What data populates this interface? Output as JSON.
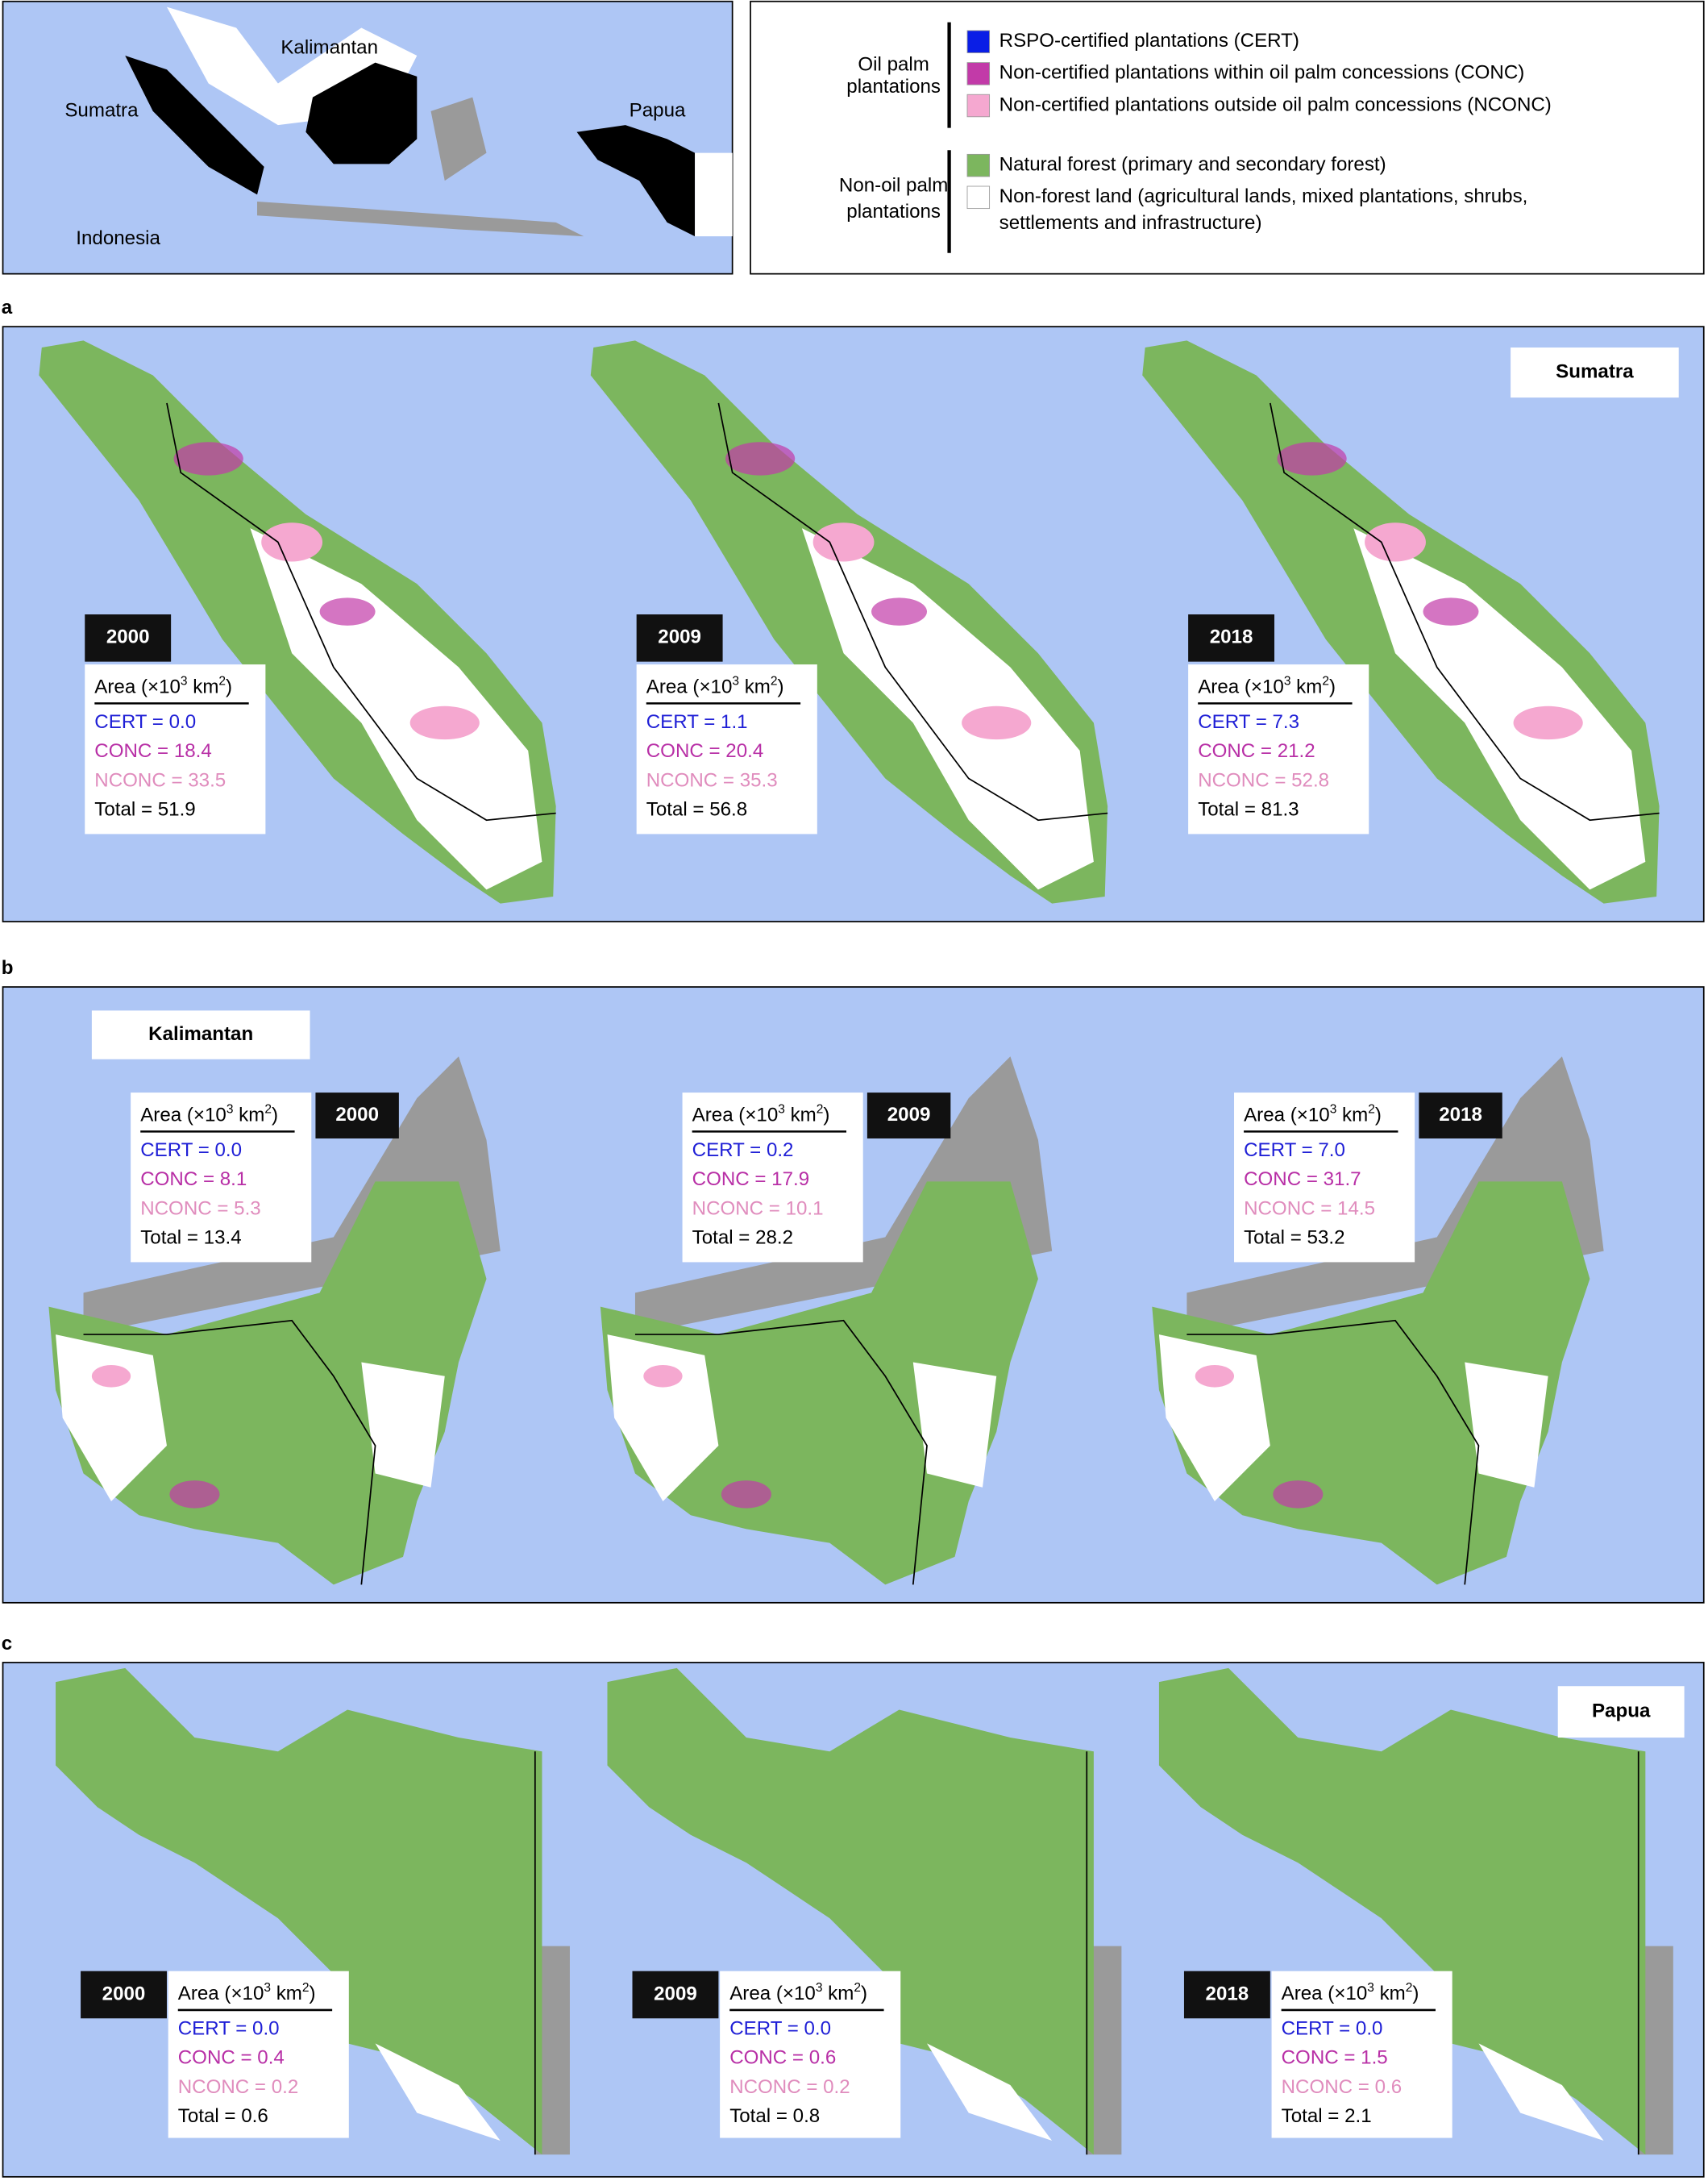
{
  "inset": {
    "labels": [
      "Sumatra",
      "Kalimantan",
      "Papua",
      "Indonesia"
    ]
  },
  "legend": {
    "groups": [
      {
        "label": [
          "Oil palm",
          "plantations"
        ],
        "items": [
          {
            "color": "#0a1ee6",
            "text": [
              "RSPO-certified plantations (CERT)"
            ]
          },
          {
            "color": "#c23aa8",
            "text": [
              "Non-certified plantations within oil palm concessions (CONC)"
            ]
          },
          {
            "color": "#f5a8d0",
            "text": [
              "Non-certified plantations outside oil palm concessions (NCONC)"
            ]
          }
        ]
      },
      {
        "label": [
          "Non-oil palm",
          "plantations"
        ],
        "items": [
          {
            "color": "#7cb65e",
            "text": [
              "Natural forest (primary and secondary forest)"
            ]
          },
          {
            "color": "#ffffff",
            "text": [
              "Non-forest land (agricultural lands, mixed plantations, shrubs,",
              "settlements and infrastructure)"
            ]
          }
        ]
      }
    ]
  },
  "area_label": {
    "base": "Area (×10",
    "exp1": "3",
    "mid": " km",
    "exp2": "2",
    "end": ")"
  },
  "line_colors": [
    "#1f1fd6",
    "#b82fa6",
    "#e08cbd",
    "#000000"
  ],
  "panels": [
    {
      "letter": "a",
      "region": "Sumatra",
      "maps": [
        {
          "year": "2000",
          "lines": [
            "CERT = 0.0",
            "CONC = 18.4",
            "NCONC = 33.5",
            "Total = 51.9"
          ]
        },
        {
          "year": "2009",
          "lines": [
            "CERT = 1.1",
            "CONC = 20.4",
            "NCONC = 35.3",
            "Total = 56.8"
          ]
        },
        {
          "year": "2018",
          "lines": [
            "CERT = 7.3",
            "CONC = 21.2",
            "NCONC = 52.8",
            "Total = 81.3"
          ]
        }
      ]
    },
    {
      "letter": "b",
      "region": "Kalimantan",
      "maps": [
        {
          "year": "2000",
          "lines": [
            "CERT = 0.0",
            "CONC = 8.1",
            "NCONC = 5.3",
            "Total = 13.4"
          ]
        },
        {
          "year": "2009",
          "lines": [
            "CERT = 0.2",
            "CONC = 17.9",
            "NCONC = 10.1",
            "Total = 28.2"
          ]
        },
        {
          "year": "2018",
          "lines": [
            "CERT = 7.0",
            "CONC = 31.7",
            "NCONC = 14.5",
            "Total = 53.2"
          ]
        }
      ]
    },
    {
      "letter": "c",
      "region": "Papua",
      "maps": [
        {
          "year": "2000",
          "lines": [
            "CERT = 0.0",
            "CONC = 0.4",
            "NCONC = 0.2",
            "Total = 0.6"
          ]
        },
        {
          "year": "2009",
          "lines": [
            "CERT = 0.0",
            "CONC = 0.6",
            "NCONC = 0.2",
            "Total = 0.8"
          ]
        },
        {
          "year": "2018",
          "lines": [
            "CERT = 0.0",
            "CONC = 1.5",
            "NCONC = 0.6",
            "Total = 2.1"
          ]
        }
      ]
    }
  ]
}
